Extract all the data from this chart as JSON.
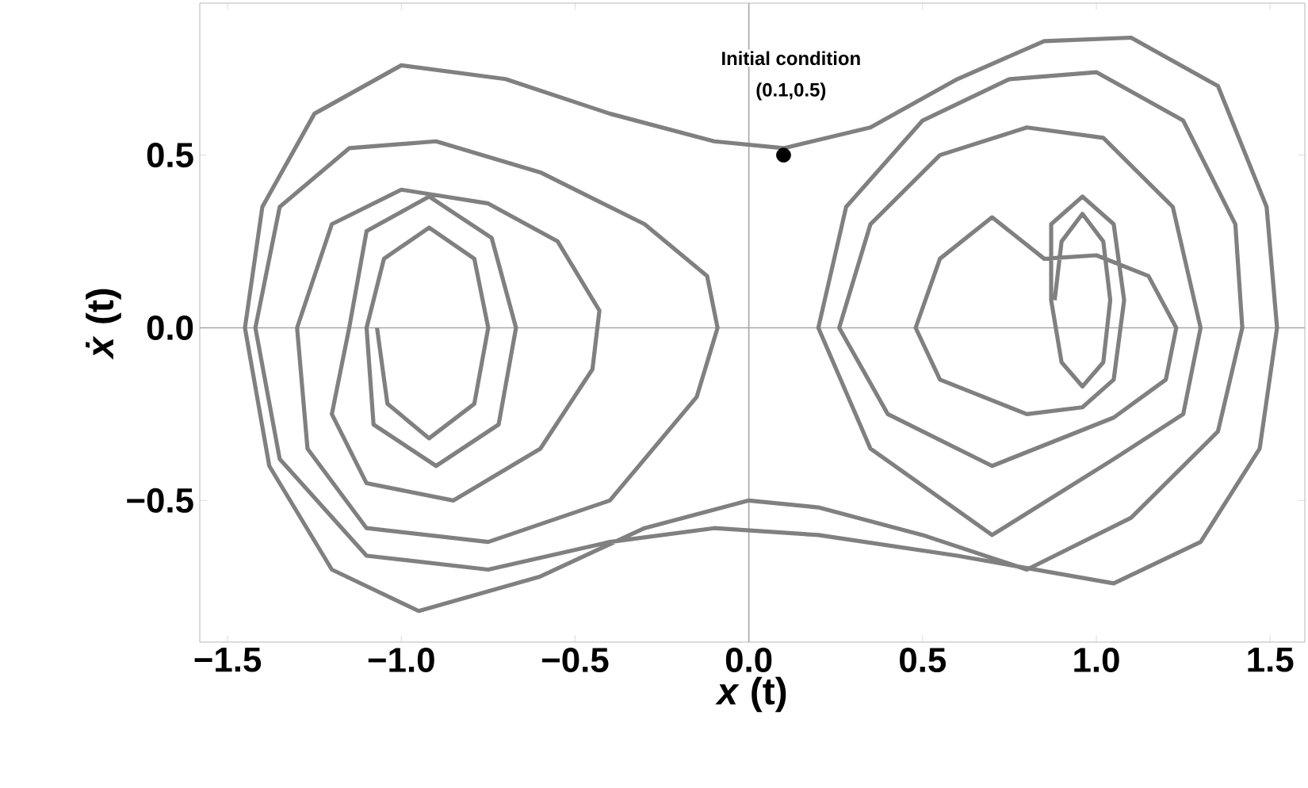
{
  "chart_data": {
    "type": "line",
    "xlabel": "*x* (t)",
    "ylabel": "*ẋ* (t)",
    "xlim": [
      -1.58,
      1.6
    ],
    "ylim": [
      -0.91,
      0.94
    ],
    "xticks": [
      {
        "value": -1.5,
        "label": "−1.5"
      },
      {
        "value": -1.0,
        "label": "−1.0"
      },
      {
        "value": -0.5,
        "label": "−0.5"
      },
      {
        "value": 0,
        "label": "0.0"
      },
      {
        "value": 0.5,
        "label": "0.5"
      },
      {
        "value": 1.0,
        "label": "1.0"
      },
      {
        "value": 1.5,
        "label": "1.5"
      }
    ],
    "yticks": [
      {
        "value": -0.5,
        "label": "−0.5"
      },
      {
        "value": 0,
        "label": "0.0"
      },
      {
        "value": 0.5,
        "label": "0.5"
      }
    ],
    "annotations": [
      "Initial condition",
      "(0.1,0.5)"
    ],
    "series": [
      {
        "color": "#808080",
        "x": [
          0.88,
          0.9,
          0.96,
          1.02,
          1.04,
          1.02,
          0.96,
          0.9,
          0.87,
          0.87,
          0.96,
          1.05,
          1.08,
          1.05,
          0.96,
          0.8,
          0.55,
          0.48,
          0.55,
          0.7,
          0.85,
          1.0,
          1.15,
          1.23,
          1.2,
          1.05,
          0.7,
          0.4,
          0.26,
          0.35,
          0.55,
          0.8,
          1.02,
          1.22,
          1.3,
          1.25,
          1.05,
          0.7,
          0.35,
          0.2,
          0.28,
          0.5,
          0.75,
          1.0,
          1.25,
          1.4,
          1.42,
          1.35,
          1.1,
          0.8,
          0.5,
          0.2,
          0,
          -0.3,
          -0.6,
          -0.95,
          -1.2,
          -1.38,
          -1.45,
          -1.4,
          -1.25,
          -1.0,
          -0.7,
          -0.4,
          -0.1,
          0.1,
          0.35,
          0.6,
          0.85,
          1.1,
          1.35,
          1.49,
          1.52,
          1.47,
          1.3,
          1.05,
          0.6,
          0.2,
          -0.1,
          -0.4,
          -0.75,
          -1.1,
          -1.35,
          -1.42,
          -1.35,
          -1.15,
          -0.9,
          -0.6,
          -0.3,
          -0.12,
          -0.09,
          -0.15,
          -0.4,
          -0.75,
          -1.1,
          -1.27,
          -1.3,
          -1.2,
          -1.0,
          -0.75,
          -0.55,
          -0.43,
          -0.45,
          -0.6,
          -0.85,
          -1.1,
          -1.2,
          -1.15,
          -1.1,
          -0.92,
          -0.74,
          -0.67,
          -0.72,
          -0.9,
          -1.08,
          -1.1,
          -1.05,
          -0.92,
          -0.79,
          -0.75,
          -0.79,
          -0.92,
          -1.04,
          -1.07
        ],
        "values": [
          0.08,
          0.25,
          0.33,
          0.25,
          0.08,
          -0.1,
          -0.17,
          -0.1,
          0.08,
          0.3,
          0.38,
          0.3,
          0.08,
          -0.15,
          -0.23,
          -0.25,
          -0.15,
          0,
          0.2,
          0.32,
          0.2,
          0.21,
          0.15,
          0,
          -0.15,
          -0.26,
          -0.4,
          -0.25,
          0,
          0.3,
          0.5,
          0.58,
          0.55,
          0.35,
          0,
          -0.25,
          -0.38,
          -0.6,
          -0.35,
          0,
          0.35,
          0.6,
          0.72,
          0.74,
          0.6,
          0.3,
          0,
          -0.3,
          -0.55,
          -0.7,
          -0.6,
          -0.52,
          -0.5,
          -0.58,
          -0.72,
          -0.82,
          -0.7,
          -0.4,
          0,
          0.35,
          0.62,
          0.76,
          0.72,
          0.62,
          0.54,
          0.52,
          0.58,
          0.72,
          0.83,
          0.84,
          0.7,
          0.35,
          0,
          -0.35,
          -0.62,
          -0.74,
          -0.66,
          -0.6,
          -0.58,
          -0.62,
          -0.7,
          -0.66,
          -0.38,
          0,
          0.35,
          0.52,
          0.54,
          0.45,
          0.3,
          0.15,
          0,
          -0.2,
          -0.5,
          -0.62,
          -0.58,
          -0.35,
          0,
          0.3,
          0.4,
          0.36,
          0.25,
          0.05,
          -0.12,
          -0.35,
          -0.5,
          -0.45,
          -0.25,
          0,
          0.28,
          0.38,
          0.26,
          0,
          -0.28,
          -0.4,
          -0.28,
          0,
          0.2,
          0.29,
          0.2,
          0,
          -0.22,
          -0.32,
          -0.22,
          0
        ]
      },
      {
        "type": "scatter",
        "color": "#000000",
        "x": [
          0.1
        ],
        "values": [
          0.5
        ]
      }
    ]
  }
}
